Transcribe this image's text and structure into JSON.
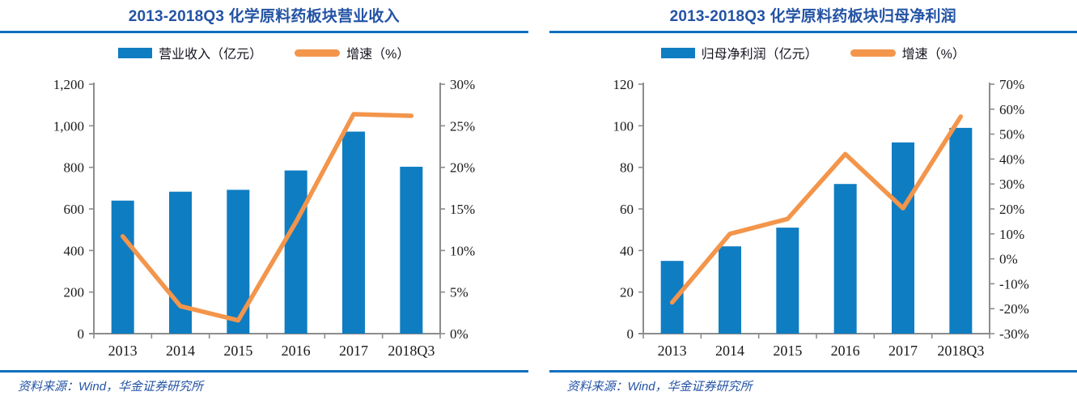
{
  "source_note": "资料来源：Wind，华金证券研究所",
  "colors": {
    "bar": "#0F7DC2",
    "line": "#F3954B",
    "title": "#2353A4",
    "rule": "#0F70C0",
    "source": "#2353A4",
    "axis": "#8C8C8C",
    "tick_text": "#1A1A1A"
  },
  "chart_data": [
    {
      "type": "bar",
      "title": "2013-2018Q3 化学原料药板块营业收入",
      "categories": [
        "2013",
        "2014",
        "2015",
        "2016",
        "2017",
        "2018Q3"
      ],
      "series": [
        {
          "name": "营业收入（亿元）",
          "type": "bar",
          "axis": "left",
          "values": [
            640,
            683,
            692,
            785,
            972,
            803
          ]
        },
        {
          "name": "增速（%）",
          "type": "line",
          "axis": "right",
          "values": [
            11.7,
            3.3,
            1.6,
            13.4,
            26.4,
            26.2
          ]
        }
      ],
      "left_axis": {
        "min": 0,
        "max": 1200,
        "step": 200,
        "tick_labels": [
          "0",
          "200",
          "400",
          "600",
          "800",
          "1,000",
          "1,200"
        ]
      },
      "right_axis": {
        "min": 0,
        "max": 30,
        "step": 5,
        "tick_labels": [
          "0%",
          "5%",
          "10%",
          "15%",
          "20%",
          "25%",
          "30%"
        ]
      },
      "grid": "off",
      "legend_position": "top"
    },
    {
      "type": "bar",
      "title": "2013-2018Q3 化学原料药板块归母净利润",
      "categories": [
        "2013",
        "2014",
        "2015",
        "2016",
        "2017",
        "2018Q3"
      ],
      "series": [
        {
          "name": "归母净利润（亿元）",
          "type": "bar",
          "axis": "left",
          "values": [
            35,
            42,
            51,
            72,
            92,
            99
          ]
        },
        {
          "name": "增速（%）",
          "type": "line",
          "axis": "right",
          "values": [
            -17.5,
            10,
            16,
            42,
            20.3,
            57
          ]
        }
      ],
      "left_axis": {
        "min": 0,
        "max": 120,
        "step": 20,
        "tick_labels": [
          "0",
          "20",
          "40",
          "60",
          "80",
          "100",
          "120"
        ]
      },
      "right_axis": {
        "min": -30,
        "max": 70,
        "step": 10,
        "tick_labels": [
          "-30%",
          "-20%",
          "-10%",
          "0%",
          "10%",
          "20%",
          "30%",
          "40%",
          "50%",
          "60%",
          "70%"
        ]
      },
      "grid": "off",
      "legend_position": "top"
    }
  ]
}
